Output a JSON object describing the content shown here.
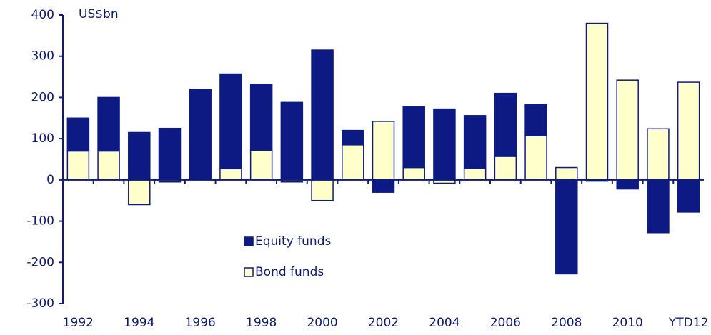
{
  "chart_data": {
    "type": "stacked_bar",
    "ylabel": "US$bn",
    "categories": [
      "1992",
      null,
      "1994",
      null,
      "1996",
      null,
      "1998",
      null,
      "2000",
      null,
      "2002",
      null,
      "2004",
      null,
      "2006",
      null,
      "2008",
      null,
      "2010",
      null,
      "YTD12"
    ],
    "series": [
      {
        "name": "Bond funds",
        "color": "#ffffcc",
        "values": [
          70,
          70,
          -60,
          -5,
          0,
          27,
          72,
          -5,
          -50,
          85,
          142,
          30,
          -8,
          28,
          57,
          107,
          30,
          380,
          242,
          124,
          237
        ]
      },
      {
        "name": "Equity funds",
        "color": "#0d1a84",
        "values": [
          80,
          130,
          115,
          125,
          220,
          230,
          160,
          188,
          315,
          35,
          -30,
          148,
          172,
          128,
          153,
          76,
          -228,
          -3,
          -22,
          -128,
          -78
        ]
      }
    ],
    "ylim": [
      -300,
      400
    ],
    "yticks": [
      -300,
      -200,
      -100,
      0,
      100,
      200,
      300,
      400
    ]
  }
}
